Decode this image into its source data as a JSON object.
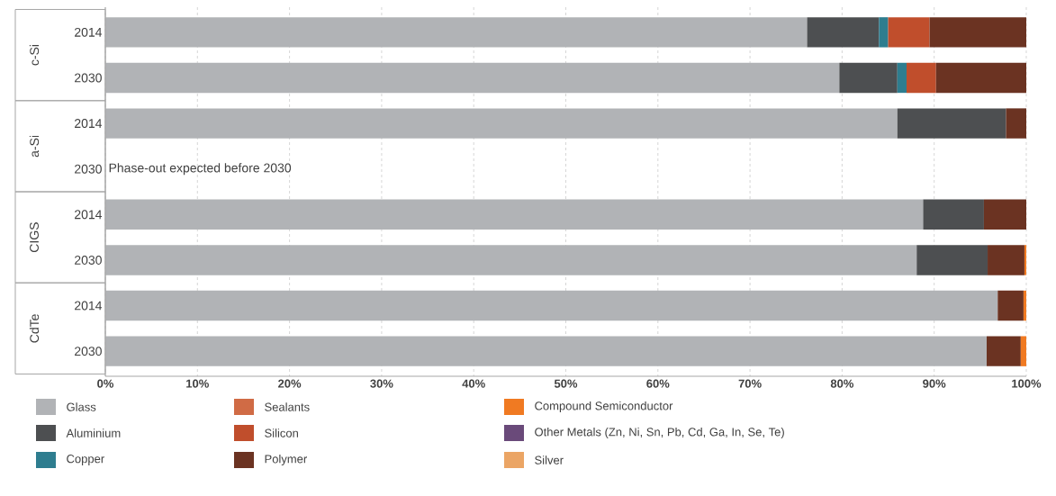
{
  "chart_data": {
    "type": "bar",
    "orientation": "horizontal",
    "stacked": true,
    "categories": [
      "2014",
      "2030",
      "2014",
      "2030",
      "2014",
      "2030",
      "2014",
      "2030"
    ],
    "annotations": [
      "c-Si",
      "a-Si",
      "CIGS",
      "CdTe",
      "Phase-out expected before 2030"
    ],
    "series": [
      {
        "name": "Glass",
        "color": "#b1b3b6",
        "values": [
          76.2,
          79.7,
          86.0,
          null,
          88.8,
          88.1,
          96.9,
          95.7
        ]
      },
      {
        "name": "Aluminium",
        "color": "#4d4f51",
        "values": [
          7.8,
          6.3,
          11.8,
          null,
          6.6,
          7.7,
          null,
          null
        ]
      },
      {
        "name": "Copper",
        "color": "#2e7d8f",
        "values": [
          1.0,
          1.0,
          null,
          null,
          null,
          null,
          null,
          null
        ]
      },
      {
        "name": "Sealants",
        "color": "#d06b45",
        "values": [
          null,
          null,
          null,
          null,
          null,
          null,
          null,
          null
        ]
      },
      {
        "name": "Silicon",
        "color": "#c04e2c",
        "values": [
          4.5,
          3.2,
          null,
          null,
          null,
          null,
          null,
          null
        ]
      },
      {
        "name": "Polymer",
        "color": "#6b3322",
        "values": [
          10.5,
          9.8,
          2.2,
          null,
          4.6,
          4.0,
          2.8,
          3.7
        ]
      },
      {
        "name": "Compound Semiconductor",
        "color": "#f07a22",
        "values": [
          null,
          null,
          null,
          null,
          null,
          0.2,
          0.3,
          0.6
        ]
      },
      {
        "name": "Other Metals (Zn, Ni, Sn, Pb, Cd, Ga, In, Se, Te)",
        "color": "#6a4a7a",
        "values": [
          null,
          null,
          null,
          null,
          null,
          null,
          null,
          null
        ]
      },
      {
        "name": "Silver",
        "color": "#eba565",
        "values": [
          null,
          null,
          null,
          null,
          null,
          null,
          null,
          null
        ]
      }
    ],
    "xlim": [
      0,
      100
    ],
    "xticks": [
      {
        "value": 0,
        "label": "0%"
      },
      {
        "value": 10,
        "label": "10%"
      },
      {
        "value": 20,
        "label": "20%"
      },
      {
        "value": 30,
        "label": "30%"
      },
      {
        "value": 40,
        "label": "40%"
      },
      {
        "value": 50,
        "label": "50%"
      },
      {
        "value": 60,
        "label": "60%"
      },
      {
        "value": 70,
        "label": "70%"
      },
      {
        "value": 80,
        "label": "80%"
      },
      {
        "value": 90,
        "label": "90%"
      },
      {
        "value": 100,
        "label": "100%"
      }
    ],
    "grid": "x",
    "legend": "bottom"
  }
}
